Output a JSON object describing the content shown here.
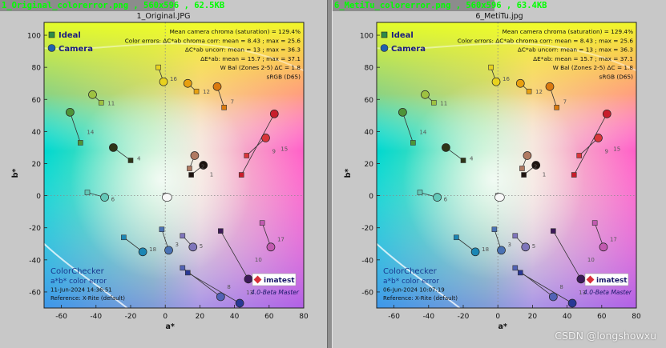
{
  "panels": [
    {
      "titlebar": "1_Original_colorerror.png ,  560x596 ,  62.5KB",
      "chart_title": "1_Original.JPG",
      "info_lines": [
        "Mean camera chroma (saturation) = 129.4%",
        "Color errors: ΔC*ab chroma corr:  mean = 8.43 ;  max = 25.6",
        "ΔC*ab uncorr:  mean = 13 ;  max = 36.3",
        "ΔE*ab:  mean = 15.7 ;  max = 37.1",
        "W Bal (Zones 2-5) ΔC = 1.8",
        "sRGB (D65)"
      ],
      "footer_lines": [
        "ColorChecker",
        "a*b* color error",
        "11-Jun-2024 14:36:51",
        "Reference: X-Rite (default)"
      ],
      "version": "4.0-Beta  Master"
    },
    {
      "titlebar": "6_MetiTu_colorerror.png ,  560x596 ,  63.4KB",
      "chart_title": "6_MetiTu.jpg",
      "info_lines": [
        "Mean camera chroma (saturation) = 129.4%",
        "Color errors: ΔC*ab chroma corr:  mean = 8.43 ;  max = 25.6",
        "ΔC*ab uncorr:  mean = 13 ;  max = 36.3",
        "ΔE*ab:  mean = 15.7 ;  max = 37.1",
        "W Bal (Zones 2-5) ΔC = 1.8",
        "sRGB (D65)"
      ],
      "footer_lines": [
        "ColorChecker",
        "a*b* color error",
        "06-Jun-2024 10:07:19",
        "Reference: X-Rite (default)"
      ],
      "version": "4.0-Beta  Master"
    }
  ],
  "brand": "imatest",
  "watermark": "CSDN @longshowxu",
  "chart_data": {
    "type": "scatter",
    "xlabel": "a*",
    "ylabel": "b*",
    "xlim": [
      -70,
      80
    ],
    "ylim": [
      -70,
      108
    ],
    "xticks": [
      -60,
      -40,
      -20,
      0,
      20,
      40,
      60,
      80
    ],
    "yticks": [
      -60,
      -40,
      -20,
      0,
      20,
      40,
      60,
      80,
      100
    ],
    "legend": [
      "Ideal",
      "Camera"
    ],
    "patches": [
      {
        "id": "1",
        "ideal": [
          15,
          13
        ],
        "camera": [
          22,
          19
        ],
        "color": "#1e1410"
      },
      {
        "id": "2",
        "ideal": [
          14,
          17
        ],
        "camera": [
          17,
          25
        ],
        "color": "#b07a62"
      },
      {
        "id": "3",
        "ideal": [
          -2,
          -21
        ],
        "camera": [
          2,
          -34
        ],
        "color": "#4a72b4"
      },
      {
        "id": "4",
        "ideal": [
          -20,
          22
        ],
        "camera": [
          -30,
          30
        ],
        "color": "#2e3618"
      },
      {
        "id": "5",
        "ideal": [
          10,
          -25
        ],
        "camera": [
          16,
          -32
        ],
        "color": "#7f75bb"
      },
      {
        "id": "6",
        "ideal": [
          -45,
          2
        ],
        "camera": [
          -35,
          -1
        ],
        "color": "#63c8b8"
      },
      {
        "id": "7",
        "ideal": [
          34,
          55
        ],
        "camera": [
          30,
          68
        ],
        "color": "#db7a10"
      },
      {
        "id": "8",
        "ideal": [
          10,
          -45
        ],
        "camera": [
          32,
          -63
        ],
        "color": "#5262b5"
      },
      {
        "id": "9",
        "ideal": [
          47,
          25
        ],
        "camera": [
          58,
          36
        ],
        "color": "#d9363a"
      },
      {
        "id": "10",
        "ideal": [
          32,
          -22
        ],
        "camera": [
          48,
          -52
        ],
        "color": "#3c1a58"
      },
      {
        "id": "11",
        "ideal": [
          -37,
          58
        ],
        "camera": [
          -42,
          63
        ],
        "color": "#9ec241"
      },
      {
        "id": "12",
        "ideal": [
          18,
          65
        ],
        "camera": [
          13,
          70
        ],
        "color": "#e8a010"
      },
      {
        "id": "13",
        "ideal": [
          13,
          -48
        ],
        "camera": [
          43,
          -67
        ],
        "color": "#283894"
      },
      {
        "id": "14",
        "ideal": [
          -49,
          33
        ],
        "camera": [
          -55,
          52
        ],
        "color": "#4e9438"
      },
      {
        "id": "15",
        "ideal": [
          44,
          13
        ],
        "camera": [
          63,
          51
        ],
        "color": "#c81e2c"
      },
      {
        "id": "16",
        "ideal": [
          -4,
          80
        ],
        "camera": [
          -1,
          71
        ],
        "color": "#e8d21e"
      },
      {
        "id": "17",
        "ideal": [
          56,
          -17
        ],
        "camera": [
          61,
          -32
        ],
        "color": "#c25ab0"
      },
      {
        "id": "18",
        "ideal": [
          -24,
          -26
        ],
        "camera": [
          -13,
          -35
        ],
        "color": "#1b86b4"
      },
      {
        "id": "W",
        "ideal": [
          0,
          0
        ],
        "camera": [
          1,
          -1
        ],
        "color": "#f4f4f4"
      }
    ]
  }
}
